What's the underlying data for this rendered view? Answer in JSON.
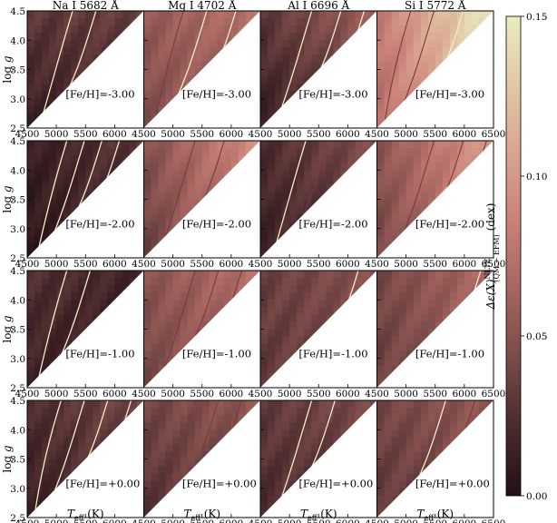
{
  "chart_data": {
    "type": "heatmap",
    "grid": {
      "columns": [
        {
          "title": "Na I 5682 Å"
        },
        {
          "title": "Mg I 4702 Å"
        },
        {
          "title": "Al I 6696 Å"
        },
        {
          "title": "Si I 5772 Å"
        }
      ],
      "rows": [
        {
          "label": "[Fe/H]=-3.00"
        },
        {
          "label": "[Fe/H]=-2.00"
        },
        {
          "label": "[Fe/H]=-1.00"
        },
        {
          "label": "[Fe/H]=+0.00"
        }
      ]
    },
    "x": {
      "label_main": "T",
      "label_sub": "eff",
      "label_unit": " (K)",
      "range": [
        4500,
        6500
      ],
      "ticks": [
        "4500",
        "5000",
        "5500",
        "6000",
        "6500"
      ]
    },
    "y": {
      "label_main": "log",
      "label_g": "g",
      "range": [
        2.5,
        4.5
      ],
      "ticks": [
        "2.5",
        "3.0",
        "3.5",
        "4.0",
        "4.5"
      ]
    },
    "colorbar": {
      "label": "Δε(X)",
      "label_sup": "NLTE",
      "label_sub": "(QM − EFM)",
      "label_unit": " (dex)",
      "range": [
        0.0,
        0.15
      ],
      "ticks": [
        "0.00",
        "0.05",
        "0.10",
        "0.15"
      ],
      "colormap": [
        "#231015",
        "#4a2a2c",
        "#7a4a48",
        "#a66560",
        "#c98078",
        "#d9a48f",
        "#e2c8a4",
        "#eaecbe"
      ]
    },
    "grid_region": "Teff-logg triangle: lower-right region (low gravity at high Teff) empty",
    "panels": [
      {
        "row": 0,
        "col": 0,
        "base": 0.012,
        "dx": 0.006,
        "dy": 0.018,
        "contours": [
          {
            "at": 0.25,
            "light": true
          },
          {
            "at": 0.45,
            "light": true
          },
          {
            "at": 0.6,
            "light": false
          }
        ]
      },
      {
        "row": 0,
        "col": 1,
        "base": 0.045,
        "dx": 0.02,
        "dy": 0.01,
        "contours": [
          {
            "at": 0.2,
            "light": false
          },
          {
            "at": 0.4,
            "light": true
          },
          {
            "at": 0.65,
            "light": true
          }
        ]
      },
      {
        "row": 0,
        "col": 2,
        "base": 0.01,
        "dx": 0.03,
        "dy": 0.02,
        "contours": [
          {
            "at": 0.3,
            "light": true
          },
          {
            "at": 0.55,
            "light": true
          },
          {
            "at": 0.75,
            "light": true
          }
        ]
      },
      {
        "row": 0,
        "col": 3,
        "base": 0.07,
        "dx": 0.07,
        "dy": 0.01,
        "contours": [
          {
            "at": 0.15,
            "light": false
          },
          {
            "at": 0.35,
            "light": false
          },
          {
            "at": 0.6,
            "light": true
          }
        ]
      },
      {
        "row": 1,
        "col": 0,
        "base": 0.006,
        "dx": 0.018,
        "dy": 0.006,
        "contours": [
          {
            "at": 0.2,
            "light": true
          },
          {
            "at": 0.35,
            "light": true
          },
          {
            "at": 0.5,
            "light": true
          },
          {
            "at": 0.65,
            "light": true
          }
        ]
      },
      {
        "row": 1,
        "col": 1,
        "base": 0.035,
        "dx": 0.05,
        "dy": 0.012,
        "contours": [
          {
            "at": 0.3,
            "light": false
          },
          {
            "at": 0.55,
            "light": false
          }
        ]
      },
      {
        "row": 1,
        "col": 2,
        "base": 0.012,
        "dx": 0.025,
        "dy": 0.01,
        "contours": [
          {
            "at": 0.25,
            "light": true
          },
          {
            "at": 0.45,
            "light": false
          }
        ]
      },
      {
        "row": 1,
        "col": 3,
        "base": 0.04,
        "dx": 0.055,
        "dy": 0.01,
        "contours": [
          {
            "at": 0.35,
            "light": false
          },
          {
            "at": 0.6,
            "light": false
          },
          {
            "at": 0.8,
            "light": false
          }
        ]
      },
      {
        "row": 2,
        "col": 0,
        "base": 0.015,
        "dx": -0.008,
        "dy": 0.01,
        "contours": [
          {
            "at": 0.2,
            "light": true
          },
          {
            "at": 0.4,
            "light": true
          }
        ]
      },
      {
        "row": 2,
        "col": 1,
        "base": 0.04,
        "dx": 0.025,
        "dy": 0.01,
        "contours": [
          {
            "at": 0.3,
            "light": false
          },
          {
            "at": 0.5,
            "light": false
          },
          {
            "at": 0.7,
            "light": false
          }
        ]
      },
      {
        "row": 2,
        "col": 2,
        "base": 0.03,
        "dx": 0.015,
        "dy": 0.005,
        "contours": [
          {
            "at": 0.7,
            "light": true
          }
        ]
      },
      {
        "row": 2,
        "col": 3,
        "base": 0.035,
        "dx": 0.03,
        "dy": 0.005,
        "contours": [
          {
            "at": 0.75,
            "light": true
          }
        ]
      },
      {
        "row": 3,
        "col": 0,
        "base": 0.012,
        "dx": 0.02,
        "dy": 0.01,
        "contours": [
          {
            "at": 0.15,
            "light": true
          },
          {
            "at": 0.35,
            "light": true
          },
          {
            "at": 0.55,
            "light": true
          },
          {
            "at": 0.75,
            "light": true
          }
        ]
      },
      {
        "row": 3,
        "col": 1,
        "base": 0.025,
        "dx": 0.015,
        "dy": 0.015,
        "contours": [
          {
            "at": 0.3,
            "light": false
          },
          {
            "at": 0.5,
            "light": false
          },
          {
            "at": 0.7,
            "light": false
          }
        ]
      },
      {
        "row": 3,
        "col": 2,
        "base": 0.02,
        "dx": 0.012,
        "dy": 0.012,
        "contours": [
          {
            "at": 0.3,
            "light": true
          },
          {
            "at": 0.5,
            "light": true
          },
          {
            "at": 0.7,
            "light": false
          }
        ]
      },
      {
        "row": 3,
        "col": 3,
        "base": 0.03,
        "dx": 0.015,
        "dy": 0.01,
        "contours": [
          {
            "at": 0.45,
            "light": true
          },
          {
            "at": 0.7,
            "light": false
          }
        ]
      }
    ]
  }
}
